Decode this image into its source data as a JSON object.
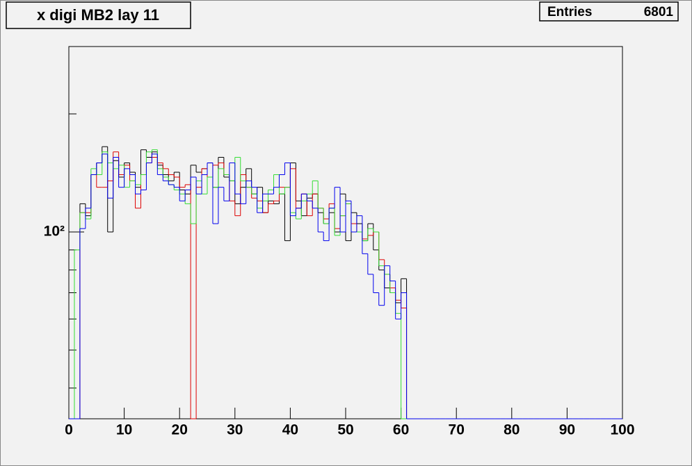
{
  "chart_data": {
    "type": "step-histogram",
    "title": "x digi MB2 lay 11",
    "stats": {
      "label": "Entries",
      "value": 6801
    },
    "bins": [
      0,
      1,
      2,
      3,
      4,
      5,
      6,
      7,
      8,
      9,
      10,
      11,
      12,
      13,
      14,
      15,
      16,
      17,
      18,
      19,
      20,
      21,
      22,
      23,
      24,
      25,
      26,
      27,
      28,
      29,
      30,
      31,
      32,
      33,
      34,
      35,
      36,
      37,
      38,
      39,
      40,
      41,
      42,
      43,
      44,
      45,
      46,
      47,
      48,
      49,
      50,
      51,
      52,
      53,
      54,
      55,
      56,
      57,
      58,
      59,
      60,
      61,
      62,
      63,
      64,
      65,
      66,
      67,
      68,
      69,
      70,
      71,
      72,
      73,
      74,
      75,
      76,
      77,
      78,
      79,
      80,
      81,
      82,
      83,
      84,
      85,
      86,
      87,
      88,
      89,
      90,
      91,
      92,
      93,
      94,
      95,
      96,
      97,
      98,
      99,
      100
    ],
    "series": [
      {
        "color": "#000000",
        "values": [
          0,
          0,
          118,
          110,
          140,
          150,
          165,
          100,
          152,
          138,
          150,
          142,
          130,
          162,
          155,
          160,
          148,
          140,
          135,
          142,
          128,
          125,
          148,
          142,
          145,
          150,
          130,
          155,
          138,
          135,
          118,
          130,
          145,
          125,
          130,
          112,
          120,
          118,
          125,
          95,
          150,
          120,
          110,
          122,
          125,
          112,
          105,
          112,
          100,
          125,
          95,
          112,
          105,
          95,
          105,
          90,
          80,
          72,
          70,
          66,
          76,
          0,
          0,
          0,
          0,
          0,
          0,
          0,
          0,
          0,
          0,
          0,
          0,
          0,
          0,
          0,
          0,
          0,
          0,
          0,
          0,
          0,
          0,
          0,
          0,
          0,
          0,
          0,
          0,
          0,
          0,
          0,
          0,
          0,
          0,
          0,
          0,
          0,
          0,
          0
        ]
      },
      {
        "color": "#dd0000",
        "values": [
          0,
          0,
          112,
          112,
          140,
          130,
          130,
          135,
          160,
          140,
          148,
          135,
          115,
          140,
          150,
          155,
          150,
          145,
          140,
          138,
          130,
          132,
          0,
          130,
          145,
          138,
          148,
          150,
          140,
          120,
          110,
          140,
          130,
          122,
          120,
          112,
          118,
          120,
          130,
          130,
          145,
          115,
          125,
          110,
          125,
          115,
          108,
          118,
          102,
          110,
          118,
          105,
          100,
          96,
          98,
          100,
          85,
          78,
          72,
          67,
          64,
          0,
          0,
          0,
          0,
          0,
          0,
          0,
          0,
          0,
          0,
          0,
          0,
          0,
          0,
          0,
          0,
          0,
          0,
          0,
          0,
          0,
          0,
          0,
          0,
          0,
          0,
          0,
          0,
          0,
          0,
          0,
          0,
          0,
          0,
          0,
          0,
          0,
          0,
          0
        ]
      },
      {
        "color": "#33dd33",
        "values": [
          0,
          90,
          112,
          108,
          145,
          140,
          160,
          150,
          145,
          148,
          130,
          135,
          132,
          140,
          160,
          162,
          145,
          138,
          132,
          128,
          125,
          118,
          105,
          135,
          125,
          138,
          130,
          145,
          140,
          135,
          155,
          135,
          130,
          125,
          115,
          120,
          128,
          140,
          125,
          130,
          112,
          108,
          120,
          125,
          135,
          115,
          105,
          115,
          98,
          110,
          118,
          100,
          100,
          95,
          102,
          100,
          82,
          78,
          70,
          62,
          0,
          0,
          0,
          0,
          0,
          0,
          0,
          0,
          0,
          0,
          0,
          0,
          0,
          0,
          0,
          0,
          0,
          0,
          0,
          0,
          0,
          0,
          0,
          0,
          0,
          0,
          0,
          0,
          0,
          0,
          0,
          0,
          0,
          0,
          0,
          0,
          0,
          0,
          0,
          0
        ]
      },
      {
        "color": "#0000ee",
        "values": [
          0,
          0,
          102,
          115,
          140,
          150,
          158,
          122,
          155,
          130,
          145,
          140,
          125,
          128,
          150,
          158,
          140,
          135,
          132,
          130,
          120,
          128,
          138,
          125,
          140,
          150,
          105,
          130,
          120,
          150,
          125,
          118,
          135,
          130,
          112,
          125,
          125,
          130,
          140,
          150,
          110,
          115,
          125,
          120,
          115,
          100,
          95,
          115,
          130,
          100,
          120,
          100,
          110,
          88,
          78,
          70,
          65,
          82,
          75,
          60,
          70,
          0,
          0,
          0,
          0,
          0,
          0,
          0,
          0,
          0,
          0,
          0,
          0,
          0,
          0,
          0,
          0,
          0,
          0,
          0,
          0,
          0,
          0,
          0,
          0,
          0,
          0,
          0,
          0,
          0,
          0,
          0,
          0,
          0,
          0,
          0,
          0,
          0,
          0,
          0
        ]
      }
    ],
    "xlim": [
      0,
      100
    ],
    "xticks": [
      0,
      10,
      20,
      30,
      40,
      50,
      60,
      70,
      80,
      90,
      100
    ],
    "ylim": [
      33.4,
      297
    ],
    "ylog": true,
    "yticks": [
      {
        "value": 100,
        "label": "10²"
      }
    ],
    "yminorticks": [
      40,
      50,
      60,
      70,
      80,
      90,
      200
    ]
  }
}
